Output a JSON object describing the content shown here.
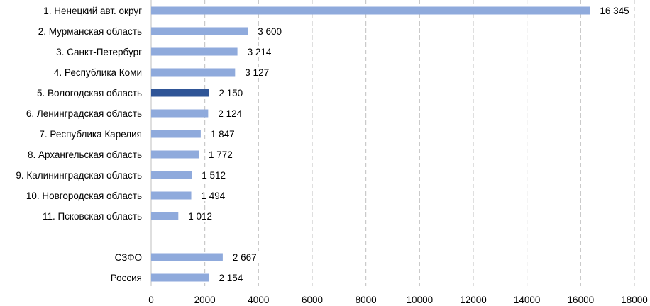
{
  "chart_data": {
    "type": "bar",
    "orientation": "horizontal",
    "title": "",
    "xlabel": "",
    "ylabel": "",
    "xlim": [
      0,
      18000
    ],
    "x_ticks": [
      "0",
      "2000",
      "4000",
      "6000",
      "8000",
      "10000",
      "12000",
      "14000",
      "16000",
      "18000"
    ],
    "grid": true,
    "categories": [
      "1. Ненецкий авт. округ",
      "2. Мурманская область",
      "3. Санкт-Петербург",
      "4. Республика Коми",
      "5. Вологодская область",
      "6. Ленинградская область",
      "7. Республика Карелия",
      "8. Архангельская область",
      "9. Калининградская область",
      "10. Новгородская область",
      "11. Псковская область",
      "",
      "СЗФО",
      "Россия"
    ],
    "values": [
      16345,
      3600,
      3214,
      3127,
      2150,
      2124,
      1847,
      1772,
      1512,
      1494,
      1012,
      null,
      2667,
      2154
    ],
    "value_labels": [
      "16 345",
      "3 600",
      "3 214",
      "3 127",
      "2 150",
      "2 124",
      "1 847",
      "1 772",
      "1 512",
      "1 494",
      "1 012",
      "",
      "2 667",
      "2 154"
    ],
    "colors": {
      "default": "#8faadc",
      "highlight": "#2f5597"
    },
    "highlight_index": 4
  }
}
